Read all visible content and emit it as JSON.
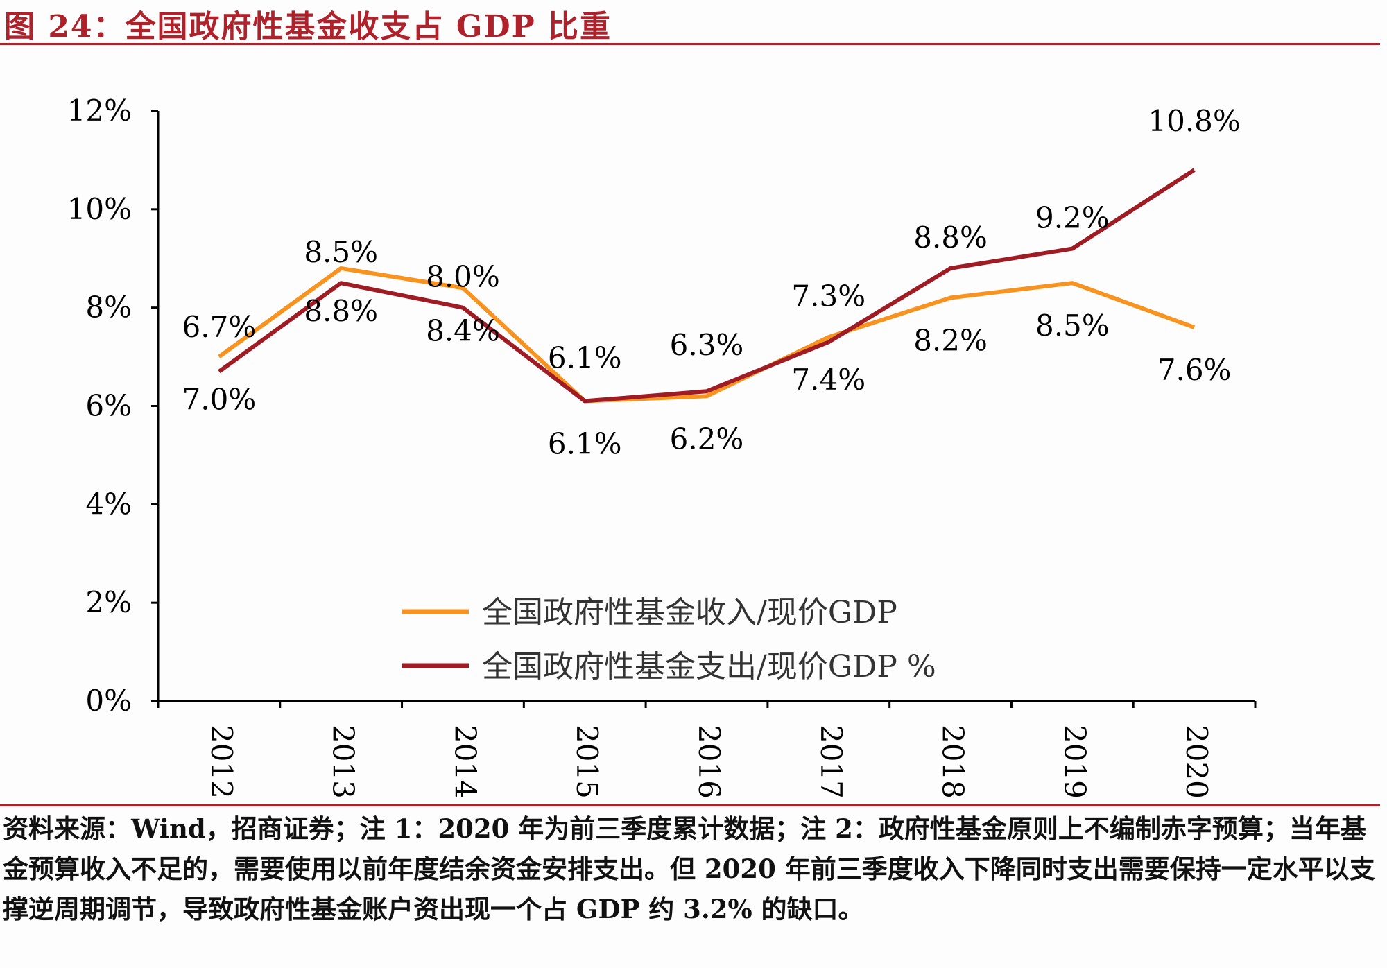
{
  "figure": {
    "title": "图 24：全国政府性基金收支占 GDP 比重",
    "footnote": "资料来源：Wind，招商证券；注 1：2020 年为前三季度累计数据；注 2：政府性基金原则上不编制赤字预算；当年基金预算收入不足的，需要使用以前年度结余资金安排支出。但 2020 年前三季度收入下降同时支出需要保持一定水平以支撑逆周期调节，导致政府性基金账户资出现一个占 GDP 约 3.2% 的缺口。"
  },
  "colors": {
    "income": "#f7931e",
    "expense": "#a01c24",
    "title": "#b0222b",
    "axis": "#000000"
  },
  "chart_data": {
    "type": "line",
    "categories": [
      "2012",
      "2013",
      "2014",
      "2015",
      "2016",
      "2017",
      "2018",
      "2019",
      "2020"
    ],
    "y_ticks": [
      "0%",
      "2%",
      "4%",
      "6%",
      "8%",
      "10%",
      "12%"
    ],
    "ylim": [
      0,
      12
    ],
    "legend_position": "lower-center",
    "grid": false,
    "series": [
      {
        "name": "全国政府性基金收入/现价GDP",
        "color": "#f7931e",
        "values": [
          7.0,
          8.8,
          8.4,
          6.1,
          6.2,
          7.4,
          8.2,
          8.5,
          7.6
        ],
        "labels": [
          "7.0%",
          "8.8%",
          "8.4%",
          "6.1%",
          "6.2%",
          "7.4%",
          "8.2%",
          "8.5%",
          "7.6%"
        ]
      },
      {
        "name": "全国政府性基金支出/现价GDP %",
        "color": "#a01c24",
        "values": [
          6.7,
          8.5,
          8.0,
          6.1,
          6.3,
          7.3,
          8.8,
          9.2,
          10.8
        ],
        "labels": [
          "6.7%",
          "8.5%",
          "8.0%",
          "6.1%",
          "6.3%",
          "7.3%",
          "8.8%",
          "9.2%",
          "10.8%"
        ]
      }
    ]
  }
}
